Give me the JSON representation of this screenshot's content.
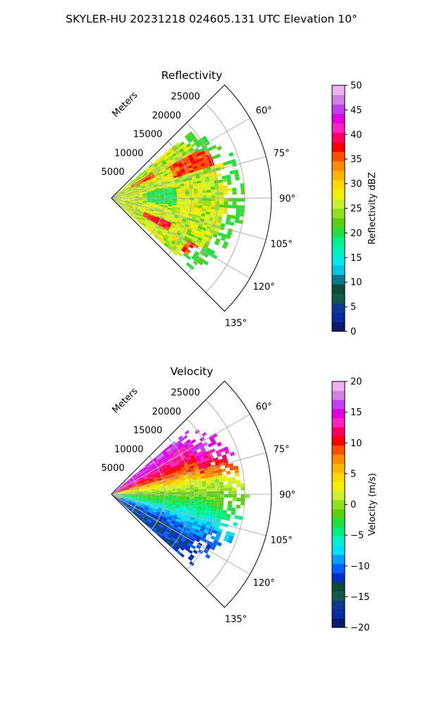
{
  "figure": {
    "title": "SKYLER-HU  20231218  024605.131 UTC Elevation 10°"
  },
  "chart_data": [
    {
      "type": "heatmap",
      "panel": "reflectivity",
      "projection": "polar-sector",
      "title": "Reflectivity",
      "radial_axis_label": "Meters",
      "radial_ticks": [
        5000,
        10000,
        15000,
        20000,
        25000
      ],
      "radial_tick_labels": [
        "5000",
        "10000",
        "15000",
        "20000",
        "25000"
      ],
      "rlim": [
        0,
        30000
      ],
      "angle_ticks": [
        60,
        75,
        90,
        105,
        120,
        135
      ],
      "angle_tick_labels": [
        "60°",
        "75°",
        "90°",
        "105°",
        "120°",
        "135°"
      ],
      "azimuth_range_deg": [
        45,
        135
      ],
      "data_azimuth_range_deg": [
        50,
        130
      ],
      "grid": true,
      "colorbar": {
        "label": "Reflectivity dBZ",
        "range": [
          0,
          50
        ],
        "ticks": [
          0,
          5,
          10,
          15,
          20,
          25,
          30,
          35,
          40,
          45,
          50
        ],
        "tick_labels": [
          "0",
          "5",
          "10",
          "15",
          "20",
          "25",
          "30",
          "35",
          "40",
          "45",
          "50"
        ]
      },
      "field_regions": [
        {
          "az": [
            60,
            72
          ],
          "r": [
            12000,
            22000
          ],
          "value": 36
        },
        {
          "az": [
            58,
            64
          ],
          "r": [
            4000,
            9000
          ],
          "value": 35
        },
        {
          "az": [
            112,
            120
          ],
          "r": [
            6000,
            12000
          ],
          "value": 37
        },
        {
          "az": [
            118,
            126
          ],
          "r": [
            16000,
            22000
          ],
          "value": 36
        },
        {
          "az": [
            80,
            95
          ],
          "r": [
            6000,
            12000
          ],
          "value": 20
        }
      ]
    },
    {
      "type": "heatmap",
      "panel": "velocity",
      "projection": "polar-sector",
      "title": "Velocity",
      "radial_axis_label": "Meters",
      "radial_ticks": [
        5000,
        10000,
        15000,
        20000,
        25000
      ],
      "radial_tick_labels": [
        "5000",
        "10000",
        "15000",
        "20000",
        "25000"
      ],
      "rlim": [
        0,
        30000
      ],
      "angle_ticks": [
        60,
        75,
        90,
        105,
        120,
        135
      ],
      "angle_tick_labels": [
        "60°",
        "75°",
        "90°",
        "105°",
        "120°",
        "135°"
      ],
      "azimuth_range_deg": [
        45,
        135
      ],
      "data_azimuth_range_deg": [
        50,
        130
      ],
      "grid": true,
      "colorbar": {
        "label": "Velocity (m/s)",
        "range": [
          -20,
          20
        ],
        "ticks": [
          -20,
          -15,
          -10,
          -5,
          0,
          5,
          10,
          15,
          20
        ],
        "tick_labels": [
          "−20",
          "−15",
          "−10",
          "−5",
          "0",
          "5",
          "10",
          "15",
          "20"
        ]
      },
      "azimuth_profile": [
        {
          "az": 52,
          "value": 16
        },
        {
          "az": 62,
          "value": 13
        },
        {
          "az": 72,
          "value": 9
        },
        {
          "az": 82,
          "value": 2
        },
        {
          "az": 92,
          "value": -2
        },
        {
          "az": 100,
          "value": -5
        },
        {
          "az": 110,
          "value": -9
        },
        {
          "az": 120,
          "value": -12
        },
        {
          "az": 128,
          "value": -12
        }
      ]
    }
  ],
  "palettes": {
    "reflectivity": [
      "#0a1a6e",
      "#0b2aa0",
      "#0f3a8a",
      "#115a4a",
      "#0e4a3a",
      "#0a7a8a",
      "#08c4e0",
      "#00e8e8",
      "#00f0c0",
      "#00f090",
      "#20e040",
      "#58d010",
      "#90e020",
      "#c8f030",
      "#f0f000",
      "#ffd800",
      "#ffb400",
      "#ff8c00",
      "#ff5000",
      "#ff0000",
      "#ff0060",
      "#ff20c0",
      "#e000e0",
      "#c040f0",
      "#d080e0",
      "#f0b0f0"
    ],
    "velocity": [
      "#0a1a6e",
      "#0b2aa0",
      "#0f3a8a",
      "#115a4a",
      "#0e4a3a",
      "#0030c0",
      "#0060ff",
      "#00a0ff",
      "#00e0ff",
      "#00f0d0",
      "#00f080",
      "#20e040",
      "#58d010",
      "#90e020",
      "#c8f030",
      "#f0f000",
      "#ffd800",
      "#ffb400",
      "#ff8c00",
      "#ff5000",
      "#ff0000",
      "#ff0060",
      "#ff20c0",
      "#e000e0",
      "#c040f0",
      "#d080e0",
      "#f0b0f0"
    ]
  }
}
